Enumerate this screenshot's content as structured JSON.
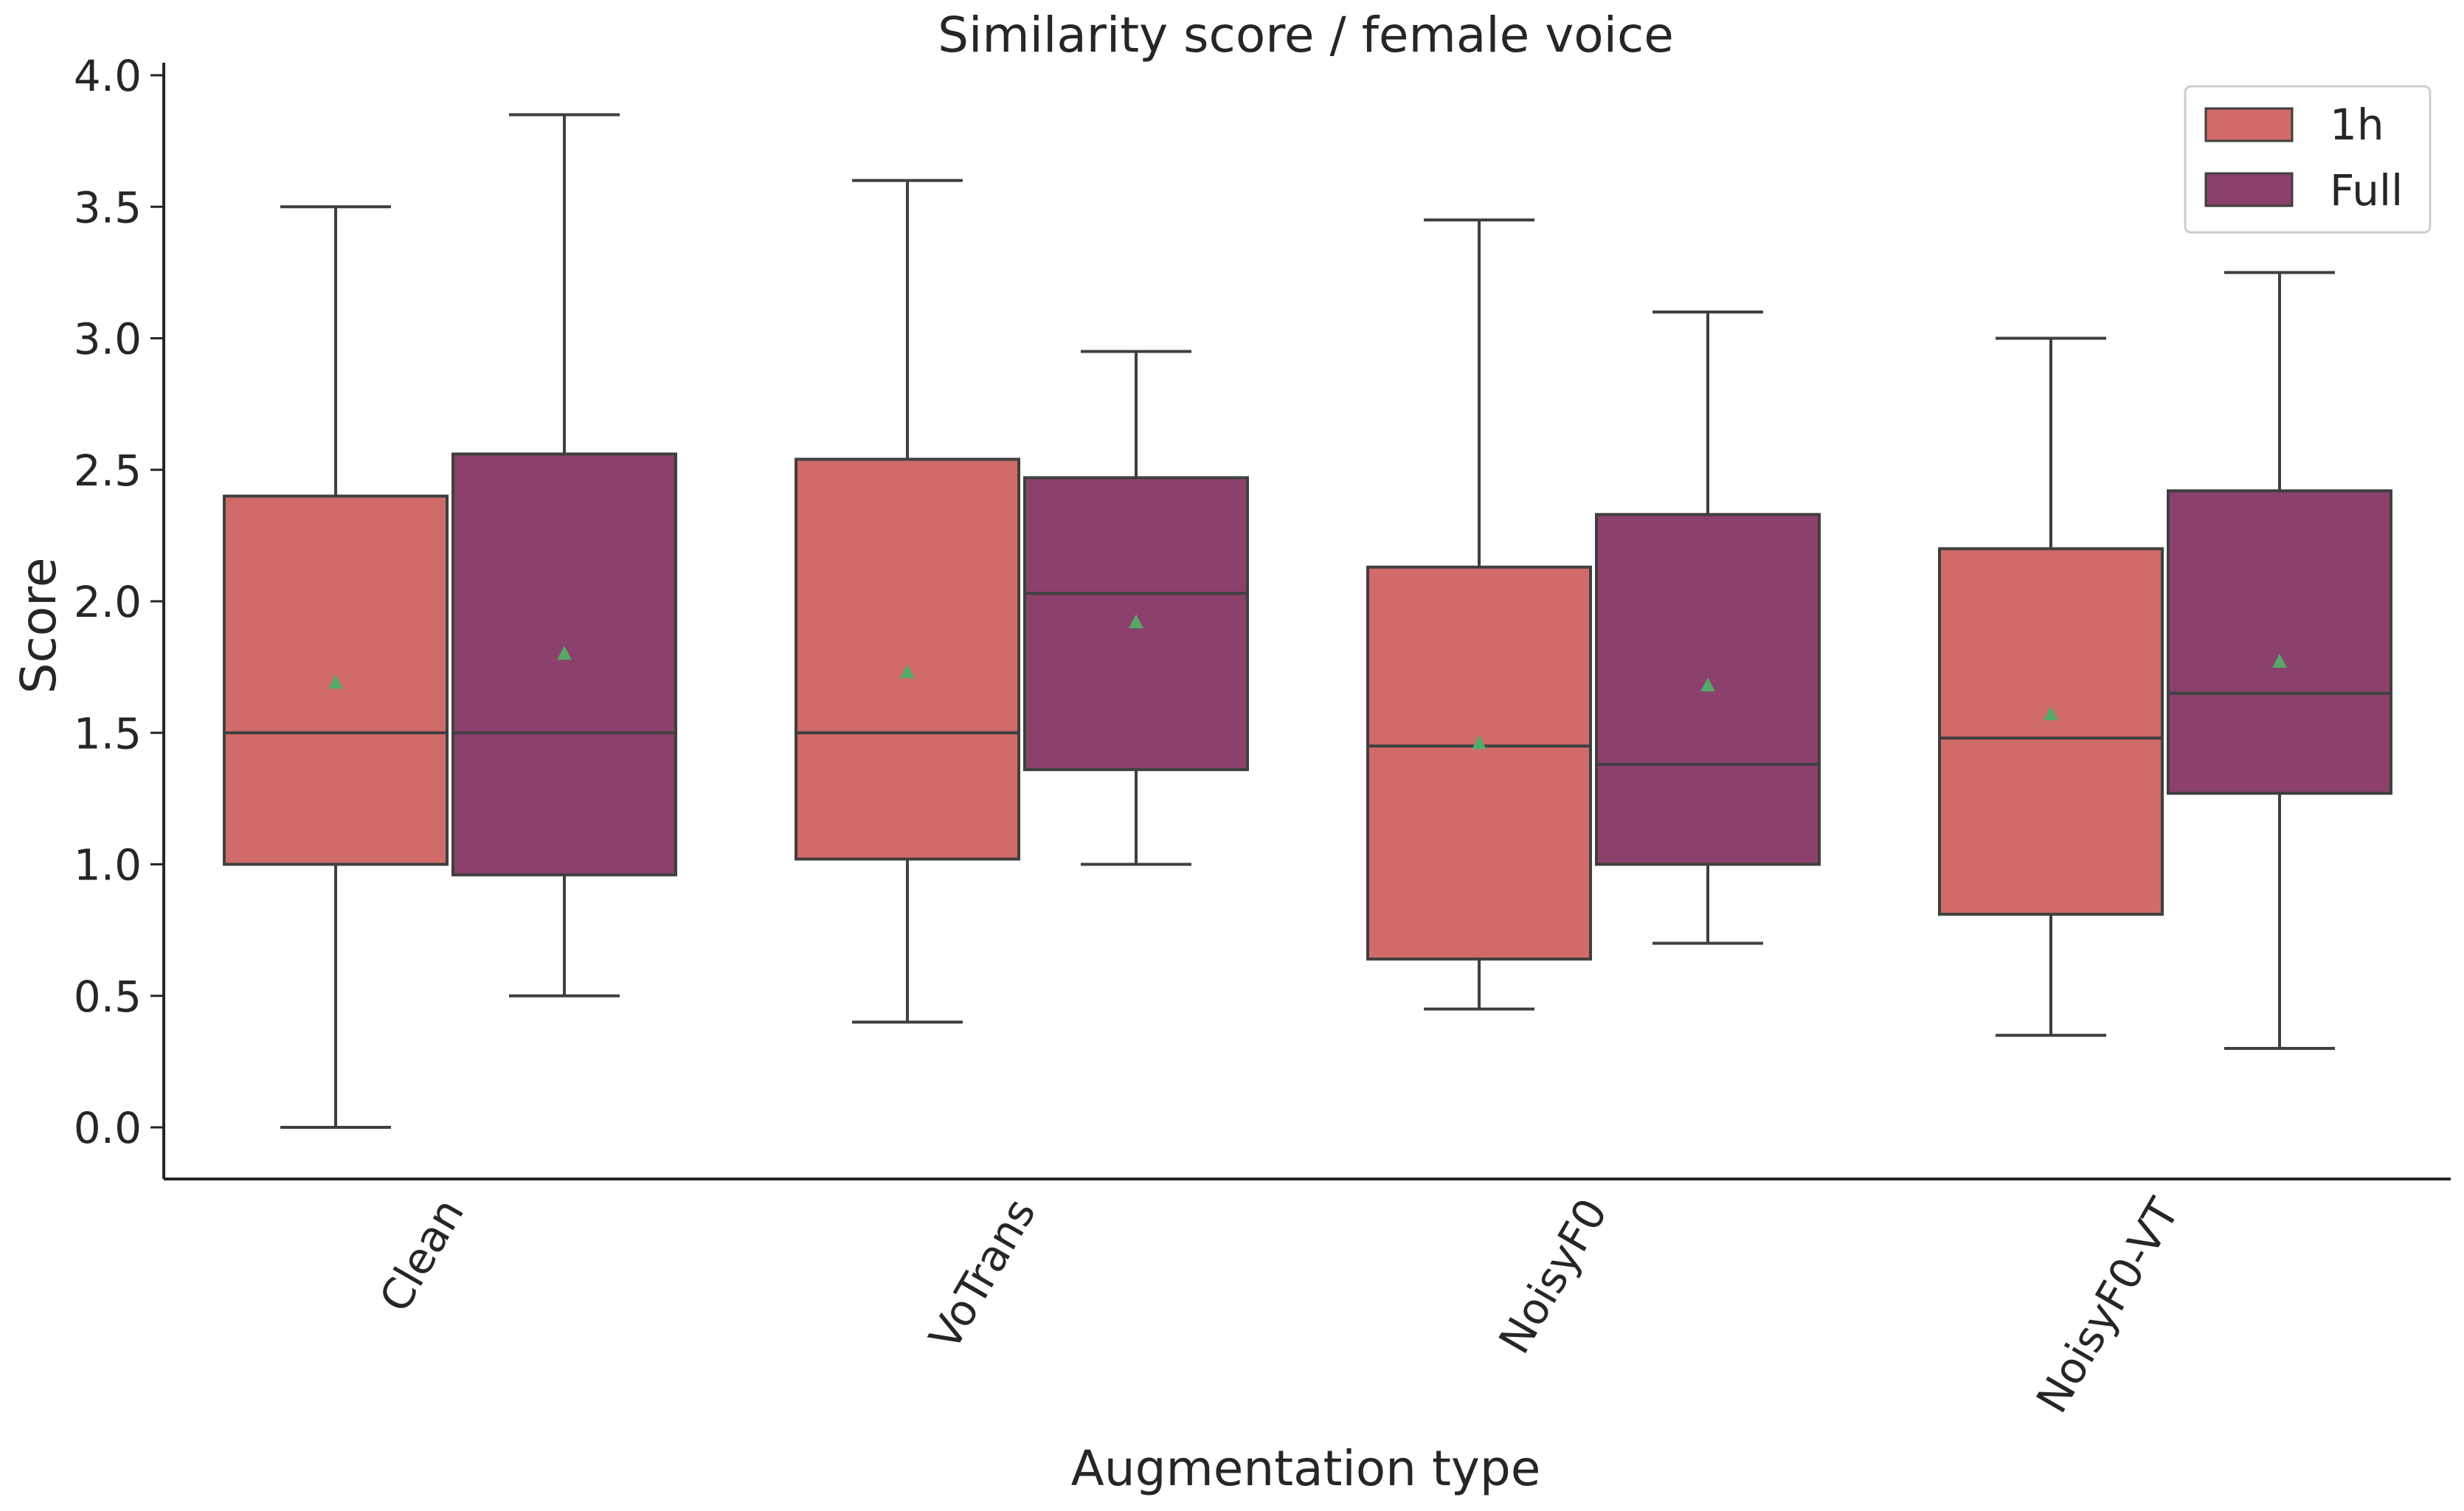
{
  "chart_data": {
    "type": "boxplot",
    "title": "Similarity score / female voice",
    "xlabel": "Augmentation type",
    "ylabel": "Score",
    "ylim": [
      -0.2,
      4.05
    ],
    "yticks": [
      "0.0",
      "0.5",
      "1.0",
      "1.5",
      "2.0",
      "2.5",
      "3.0",
      "3.5",
      "4.0"
    ],
    "categories": [
      "Clean",
      "VoTrans",
      "NoisyF0",
      "NoisyF0-VT"
    ],
    "legend_position": "top-right",
    "grid": false,
    "series": [
      {
        "name": "1h",
        "color": "#d06b6a",
        "boxes": [
          {
            "whisker_low": 0.0,
            "q1": 1.0,
            "median": 1.5,
            "q3": 2.4,
            "whisker_high": 3.5,
            "mean": 1.69
          },
          {
            "whisker_low": 0.4,
            "q1": 1.02,
            "median": 1.5,
            "q3": 2.54,
            "whisker_high": 3.6,
            "mean": 1.73
          },
          {
            "whisker_low": 0.45,
            "q1": 0.64,
            "median": 1.45,
            "q3": 2.13,
            "whisker_high": 3.45,
            "mean": 1.46
          },
          {
            "whisker_low": 0.35,
            "q1": 0.81,
            "median": 1.48,
            "q3": 2.2,
            "whisker_high": 3.0,
            "mean": 1.57
          }
        ]
      },
      {
        "name": "Full",
        "color": "#8b416b",
        "boxes": [
          {
            "whisker_low": 0.5,
            "q1": 0.96,
            "median": 1.5,
            "q3": 2.56,
            "whisker_high": 3.85,
            "mean": 1.8
          },
          {
            "whisker_low": 1.0,
            "q1": 1.36,
            "median": 2.03,
            "q3": 2.47,
            "whisker_high": 2.95,
            "mean": 1.92
          },
          {
            "whisker_low": 0.7,
            "q1": 1.0,
            "median": 1.38,
            "q3": 2.33,
            "whisker_high": 3.1,
            "mean": 1.68
          },
          {
            "whisker_low": 0.3,
            "q1": 1.27,
            "median": 1.65,
            "q3": 2.42,
            "whisker_high": 3.25,
            "mean": 1.77
          }
        ]
      }
    ],
    "mean_marker_color": "#55a868",
    "line_color": "#3f3f3f"
  }
}
